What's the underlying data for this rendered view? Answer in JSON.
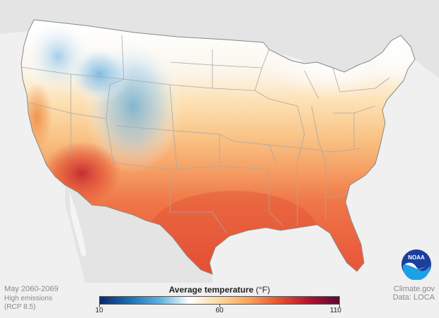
{
  "period_label": "May 2060-2069",
  "scenario_label": [
    "High emissions",
    "(RCP 8.5)"
  ],
  "credit": [
    "Climate.gov",
    "Data: LOCA"
  ],
  "legend": {
    "title": "Average temperature",
    "unit": "(°F)",
    "min_label": "10",
    "mid_label": "60",
    "max_label": "110",
    "colors": [
      "#0b2a6b",
      "#1b6fb3",
      "#5fb1e0",
      "#ffffff",
      "#fcd89a",
      "#f7a25a",
      "#e6502f",
      "#b3132f",
      "#5a0a33"
    ]
  },
  "logo": {
    "text": "NOAA",
    "icon": "noaa-logo-icon",
    "colors": [
      "#1c3f9e",
      "#1ea0e6",
      "#ffffff"
    ]
  },
  "map": {
    "land_color": "#e3e3e3",
    "water_color": "#f2f2f2",
    "border_color": "#9a9a9a"
  }
}
